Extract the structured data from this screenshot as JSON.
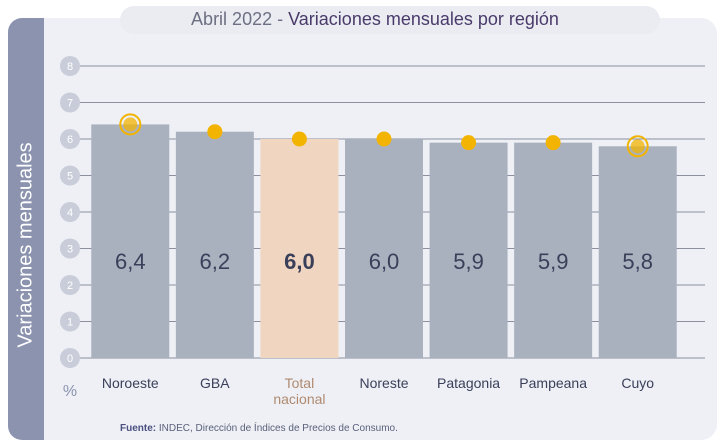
{
  "chart_data": {
    "type": "bar",
    "title": "Abril 2022 -",
    "subtitle": "Variaciones mensuales por región",
    "y_label": "Variaciones  mensuales",
    "y_unit": "%",
    "categories": [
      "Noroeste",
      "GBA",
      "Total nacional",
      "Noreste",
      "Patagonia",
      "Pampeana",
      "Cuyo"
    ],
    "values": [
      6.4,
      6.2,
      6.0,
      6.0,
      5.9,
      5.9,
      5.8
    ],
    "value_labels": [
      "6,4",
      "6,2",
      "6,0",
      "6,0",
      "5,9",
      "5,9",
      "5,8"
    ],
    "color": "#aab1be",
    "highlight_color": "#f0d5c0",
    "highlight": 2,
    "marker_color": "#f2b400",
    "ringed": [
      0,
      6
    ],
    "ylim": [
      0,
      8
    ],
    "yticks": [
      0,
      1,
      2,
      3,
      4,
      5,
      6,
      7,
      8
    ],
    "grid": true,
    "source_label": "Fuente:",
    "source": "INDEC, Dirección de Índices de Precios de Consumo."
  }
}
